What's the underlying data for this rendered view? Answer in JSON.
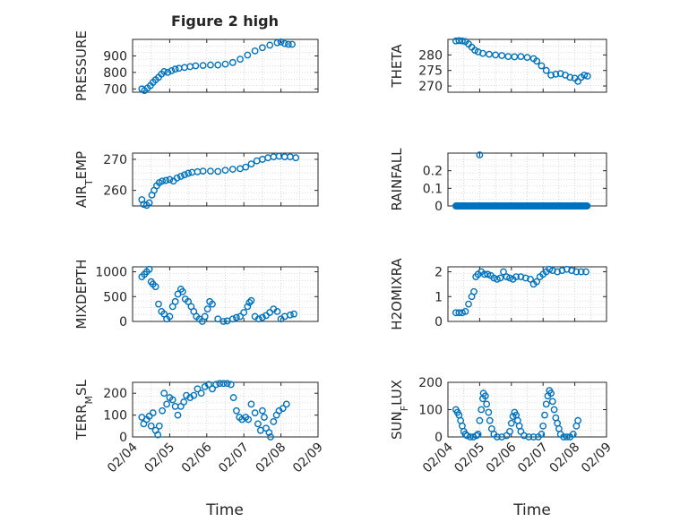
{
  "figure": {
    "title": "Figure 2 high",
    "xlabel": "Time"
  },
  "chart_data": [
    {
      "type": "scatter",
      "ylabel": "PRESSURE",
      "ylim": [
        680,
        1000
      ],
      "yticks": [
        700,
        800,
        900
      ],
      "xlim": [
        4.0,
        9.0
      ],
      "xticks": [],
      "points": [
        [
          4.25,
          700
        ],
        [
          4.32,
          690
        ],
        [
          4.4,
          705
        ],
        [
          4.48,
          720
        ],
        [
          4.55,
          740
        ],
        [
          4.62,
          755
        ],
        [
          4.7,
          770
        ],
        [
          4.78,
          790
        ],
        [
          4.85,
          805
        ],
        [
          4.95,
          800
        ],
        [
          5.05,
          810
        ],
        [
          5.15,
          820
        ],
        [
          5.25,
          825
        ],
        [
          5.4,
          830
        ],
        [
          5.55,
          835
        ],
        [
          5.7,
          840
        ],
        [
          5.9,
          842
        ],
        [
          6.1,
          845
        ],
        [
          6.3,
          845
        ],
        [
          6.5,
          850
        ],
        [
          6.7,
          860
        ],
        [
          6.9,
          880
        ],
        [
          7.1,
          905
        ],
        [
          7.3,
          930
        ],
        [
          7.5,
          950
        ],
        [
          7.7,
          965
        ],
        [
          7.9,
          980
        ],
        [
          8.0,
          985
        ],
        [
          8.1,
          975
        ],
        [
          8.2,
          970
        ],
        [
          8.3,
          970
        ]
      ]
    },
    {
      "type": "scatter",
      "ylabel": "THETA",
      "ylim": [
        268,
        285
      ],
      "yticks": [
        270,
        275,
        280
      ],
      "xlim": [
        4.0,
        9.0
      ],
      "xticks": [],
      "points": [
        [
          4.25,
          284.5
        ],
        [
          4.35,
          284.6
        ],
        [
          4.45,
          284.5
        ],
        [
          4.55,
          284.3
        ],
        [
          4.65,
          283.5
        ],
        [
          4.75,
          282.5
        ],
        [
          4.85,
          281.5
        ],
        [
          4.95,
          281.0
        ],
        [
          5.1,
          280.5
        ],
        [
          5.3,
          280.2
        ],
        [
          5.5,
          280.0
        ],
        [
          5.7,
          279.8
        ],
        [
          5.9,
          279.5
        ],
        [
          6.1,
          279.4
        ],
        [
          6.3,
          279.5
        ],
        [
          6.5,
          279.2
        ],
        [
          6.7,
          278.8
        ],
        [
          6.8,
          278.0
        ],
        [
          6.95,
          276.5
        ],
        [
          7.1,
          275.0
        ],
        [
          7.25,
          273.5
        ],
        [
          7.4,
          273.8
        ],
        [
          7.55,
          274.0
        ],
        [
          7.7,
          273.5
        ],
        [
          7.85,
          272.8
        ],
        [
          8.0,
          272.5
        ],
        [
          8.1,
          271.5
        ],
        [
          8.2,
          272.8
        ],
        [
          8.3,
          273.5
        ],
        [
          8.4,
          273.2
        ]
      ]
    },
    {
      "type": "scatter",
      "ylabel": "AIR_TEMP",
      "ylim": [
        255,
        272
      ],
      "yticks": [
        260,
        270
      ],
      "xlim": [
        4.0,
        9.0
      ],
      "xticks": [],
      "points": [
        [
          4.25,
          257
        ],
        [
          4.3,
          255.5
        ],
        [
          4.38,
          255.2
        ],
        [
          4.45,
          256
        ],
        [
          4.52,
          258.5
        ],
        [
          4.58,
          260
        ],
        [
          4.65,
          261.5
        ],
        [
          4.72,
          262.5
        ],
        [
          4.8,
          263
        ],
        [
          4.9,
          263.2
        ],
        [
          5.0,
          263.5
        ],
        [
          5.1,
          263
        ],
        [
          5.2,
          264
        ],
        [
          5.3,
          264.5
        ],
        [
          5.4,
          265
        ],
        [
          5.5,
          265.5
        ],
        [
          5.6,
          265.8
        ],
        [
          5.75,
          266
        ],
        [
          5.9,
          266.2
        ],
        [
          6.1,
          266.2
        ],
        [
          6.3,
          266.1
        ],
        [
          6.5,
          266.5
        ],
        [
          6.7,
          266.8
        ],
        [
          6.9,
          267
        ],
        [
          7.05,
          267.5
        ],
        [
          7.2,
          268.5
        ],
        [
          7.35,
          269.5
        ],
        [
          7.5,
          270
        ],
        [
          7.65,
          270.5
        ],
        [
          7.8,
          270.8
        ],
        [
          7.95,
          271
        ],
        [
          8.1,
          270.8
        ],
        [
          8.25,
          270.8
        ],
        [
          8.4,
          270.5
        ]
      ]
    },
    {
      "type": "scatter",
      "ylabel": "RAINFALL",
      "ylim": [
        0,
        0.3
      ],
      "yticks": [
        0,
        0.1,
        0.2
      ],
      "ytick_labels": [
        "0",
        "0.1",
        "0.2"
      ],
      "xlim": [
        4.0,
        9.0
      ],
      "xticks": [],
      "points": [
        [
          5.0,
          0.29
        ]
      ],
      "zero_line": [
        4.25,
        8.4
      ]
    },
    {
      "type": "scatter",
      "ylabel": "MIXDEPTH",
      "ylim": [
        0,
        1100
      ],
      "yticks": [
        0,
        500,
        1000
      ],
      "xlim": [
        4.0,
        9.0
      ],
      "xticks": [],
      "points": [
        [
          4.25,
          900
        ],
        [
          4.32,
          950
        ],
        [
          4.38,
          1000
        ],
        [
          4.45,
          1050
        ],
        [
          4.5,
          800
        ],
        [
          4.55,
          750
        ],
        [
          4.62,
          700
        ],
        [
          4.7,
          350
        ],
        [
          4.78,
          200
        ],
        [
          4.85,
          150
        ],
        [
          4.92,
          50
        ],
        [
          5.0,
          100
        ],
        [
          5.08,
          300
        ],
        [
          5.15,
          400
        ],
        [
          5.22,
          550
        ],
        [
          5.3,
          650
        ],
        [
          5.35,
          600
        ],
        [
          5.42,
          450
        ],
        [
          5.5,
          400
        ],
        [
          5.58,
          300
        ],
        [
          5.65,
          200
        ],
        [
          5.72,
          100
        ],
        [
          5.8,
          50
        ],
        [
          5.88,
          0
        ],
        [
          5.95,
          100
        ],
        [
          6.02,
          250
        ],
        [
          6.08,
          400
        ],
        [
          6.15,
          350
        ],
        [
          6.3,
          50
        ],
        [
          6.45,
          0
        ],
        [
          6.55,
          10
        ],
        [
          6.7,
          50
        ],
        [
          6.8,
          80
        ],
        [
          6.9,
          100
        ],
        [
          7.0,
          180
        ],
        [
          7.1,
          300
        ],
        [
          7.15,
          380
        ],
        [
          7.2,
          420
        ],
        [
          7.3,
          100
        ],
        [
          7.4,
          50
        ],
        [
          7.5,
          80
        ],
        [
          7.6,
          120
        ],
        [
          7.7,
          180
        ],
        [
          7.8,
          250
        ],
        [
          7.9,
          200
        ],
        [
          8.0,
          50
        ],
        [
          8.1,
          100
        ],
        [
          8.25,
          130
        ],
        [
          8.35,
          150
        ]
      ]
    },
    {
      "type": "scatter",
      "ylabel": "H2OMIXRA",
      "ylim": [
        0,
        2.2
      ],
      "yticks": [
        0,
        1,
        2
      ],
      "xlim": [
        4.0,
        9.0
      ],
      "xticks": [],
      "points": [
        [
          4.25,
          0.35
        ],
        [
          4.35,
          0.35
        ],
        [
          4.45,
          0.35
        ],
        [
          4.55,
          0.4
        ],
        [
          4.65,
          0.7
        ],
        [
          4.75,
          1.0
        ],
        [
          4.82,
          1.2
        ],
        [
          4.88,
          1.8
        ],
        [
          4.95,
          1.9
        ],
        [
          5.05,
          2.0
        ],
        [
          5.15,
          1.9
        ],
        [
          5.25,
          1.9
        ],
        [
          5.35,
          1.85
        ],
        [
          5.45,
          1.75
        ],
        [
          5.55,
          1.7
        ],
        [
          5.65,
          1.75
        ],
        [
          5.75,
          2.0
        ],
        [
          5.85,
          1.8
        ],
        [
          5.95,
          1.75
        ],
        [
          6.05,
          1.7
        ],
        [
          6.15,
          1.8
        ],
        [
          6.3,
          1.8
        ],
        [
          6.45,
          1.75
        ],
        [
          6.6,
          1.7
        ],
        [
          6.7,
          1.5
        ],
        [
          6.8,
          1.6
        ],
        [
          6.9,
          1.8
        ],
        [
          7.0,
          1.9
        ],
        [
          7.1,
          2.0
        ],
        [
          7.2,
          2.1
        ],
        [
          7.3,
          2.05
        ],
        [
          7.45,
          2.0
        ],
        [
          7.6,
          2.05
        ],
        [
          7.75,
          2.1
        ],
        [
          7.9,
          2.05
        ],
        [
          8.05,
          2.0
        ],
        [
          8.2,
          2.0
        ],
        [
          8.35,
          2.0
        ]
      ]
    },
    {
      "type": "scatter",
      "ylabel": "TERR_MSL",
      "ylim": [
        0,
        250
      ],
      "yticks": [
        0,
        100,
        200
      ],
      "xlim": [
        4.0,
        9.0
      ],
      "xticks": [
        4,
        5,
        6,
        7,
        8,
        9
      ],
      "xtick_labels": [
        "02/04",
        "02/05",
        "02/06",
        "02/07",
        "02/08",
        "02/09"
      ],
      "points": [
        [
          4.25,
          90
        ],
        [
          4.3,
          60
        ],
        [
          4.38,
          80
        ],
        [
          4.45,
          95
        ],
        [
          4.5,
          50
        ],
        [
          4.55,
          110
        ],
        [
          4.62,
          30
        ],
        [
          4.68,
          10
        ],
        [
          4.72,
          50
        ],
        [
          4.8,
          120
        ],
        [
          4.85,
          200
        ],
        [
          4.92,
          150
        ],
        [
          5.0,
          180
        ],
        [
          5.08,
          170
        ],
        [
          5.15,
          140
        ],
        [
          5.22,
          100
        ],
        [
          5.3,
          140
        ],
        [
          5.38,
          160
        ],
        [
          5.45,
          190
        ],
        [
          5.55,
          180
        ],
        [
          5.65,
          190
        ],
        [
          5.75,
          220
        ],
        [
          5.85,
          200
        ],
        [
          5.95,
          230
        ],
        [
          6.05,
          240
        ],
        [
          6.15,
          220
        ],
        [
          6.25,
          240
        ],
        [
          6.35,
          245
        ],
        [
          6.45,
          245
        ],
        [
          6.55,
          245
        ],
        [
          6.65,
          240
        ],
        [
          6.72,
          180
        ],
        [
          6.8,
          120
        ],
        [
          6.88,
          90
        ],
        [
          6.95,
          80
        ],
        [
          7.05,
          90
        ],
        [
          7.12,
          80
        ],
        [
          7.2,
          150
        ],
        [
          7.3,
          110
        ],
        [
          7.38,
          60
        ],
        [
          7.45,
          30
        ],
        [
          7.5,
          120
        ],
        [
          7.55,
          90
        ],
        [
          7.6,
          40
        ],
        [
          7.68,
          20
        ],
        [
          7.72,
          0
        ],
        [
          7.8,
          70
        ],
        [
          7.88,
          100
        ],
        [
          7.95,
          120
        ],
        [
          8.05,
          130
        ],
        [
          8.15,
          150
        ]
      ]
    },
    {
      "type": "scatter",
      "ylabel": "SUN_FLUX",
      "ylim": [
        0,
        200
      ],
      "yticks": [
        0,
        100,
        200
      ],
      "xlim": [
        4.0,
        9.0
      ],
      "xticks": [
        4,
        5,
        6,
        7,
        8,
        9
      ],
      "xtick_labels": [
        "02/04",
        "02/05",
        "02/06",
        "02/07",
        "02/08",
        "02/09"
      ],
      "points": [
        [
          4.25,
          100
        ],
        [
          4.3,
          90
        ],
        [
          4.35,
          80
        ],
        [
          4.4,
          60
        ],
        [
          4.45,
          40
        ],
        [
          4.5,
          20
        ],
        [
          4.55,
          10
        ],
        [
          4.6,
          5
        ],
        [
          4.7,
          0
        ],
        [
          4.8,
          0
        ],
        [
          4.9,
          5
        ],
        [
          4.95,
          10
        ],
        [
          5.0,
          60
        ],
        [
          5.05,
          100
        ],
        [
          5.1,
          140
        ],
        [
          5.12,
          160
        ],
        [
          5.18,
          150
        ],
        [
          5.22,
          120
        ],
        [
          5.28,
          90
        ],
        [
          5.32,
          60
        ],
        [
          5.38,
          30
        ],
        [
          5.45,
          10
        ],
        [
          5.55,
          0
        ],
        [
          5.7,
          0
        ],
        [
          5.85,
          5
        ],
        [
          5.95,
          20
        ],
        [
          6.0,
          50
        ],
        [
          6.05,
          75
        ],
        [
          6.1,
          90
        ],
        [
          6.15,
          80
        ],
        [
          6.2,
          60
        ],
        [
          6.25,
          40
        ],
        [
          6.3,
          20
        ],
        [
          6.4,
          5
        ],
        [
          6.55,
          0
        ],
        [
          6.7,
          0
        ],
        [
          6.85,
          0
        ],
        [
          6.95,
          10
        ],
        [
          7.0,
          40
        ],
        [
          7.05,
          80
        ],
        [
          7.1,
          120
        ],
        [
          7.15,
          150
        ],
        [
          7.2,
          170
        ],
        [
          7.25,
          160
        ],
        [
          7.3,
          130
        ],
        [
          7.35,
          100
        ],
        [
          7.4,
          70
        ],
        [
          7.45,
          50
        ],
        [
          7.5,
          30
        ],
        [
          7.55,
          10
        ],
        [
          7.65,
          0
        ],
        [
          7.75,
          0
        ],
        [
          7.85,
          0
        ],
        [
          7.95,
          10
        ],
        [
          8.05,
          40
        ],
        [
          8.1,
          60
        ]
      ]
    }
  ]
}
